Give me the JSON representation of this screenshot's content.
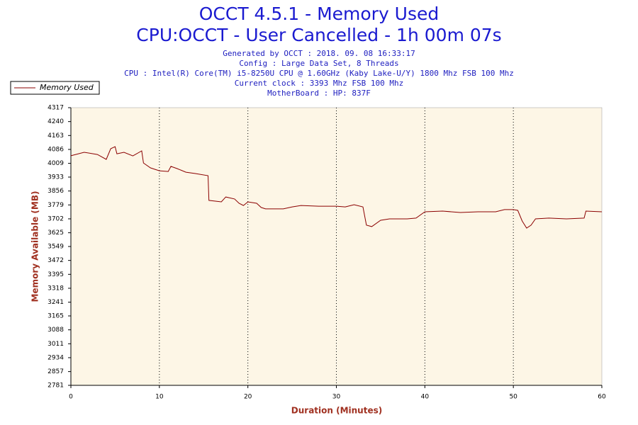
{
  "chart_data": {
    "type": "line",
    "title": "OCCT 4.5.1 - Memory Used",
    "subtitle": "CPU:OCCT - User Cancelled - 1h 00m 07s",
    "info": [
      "Generated by OCCT : 2018. 09. 08 16:33:17",
      "Config : Large Data Set, 8 Threads",
      "CPU : Intel(R) Core(TM) i5-8250U CPU @ 1.60GHz (Kaby Lake-U/Y) 1800 Mhz FSB 100 Mhz",
      "Current clock : 3393 Mhz FSB 100 Mhz",
      "MotherBoard : HP: 837F"
    ],
    "x_label": "Duration (Minutes)",
    "y_label": "Memory Available (MB)",
    "x": [
      0,
      1.5,
      3,
      4,
      4.5,
      5,
      5.2,
      6,
      7,
      8,
      8.2,
      9,
      10,
      11,
      11.3,
      12,
      13,
      14,
      15.5,
      15.6,
      17,
      17.5,
      18.5,
      19,
      19.5,
      20,
      21,
      21.5,
      22,
      24,
      25,
      26,
      28,
      30,
      31,
      32,
      33,
      33.4,
      34,
      35,
      36,
      38,
      39,
      40,
      42,
      44,
      46,
      48,
      49,
      50,
      50.5,
      51,
      51.5,
      52,
      52.5,
      54,
      56,
      58,
      58.2,
      60
    ],
    "series": [
      {
        "name": "Memory Used",
        "color": "#8b0000",
        "values": [
          4051,
          4070,
          4058,
          4031,
          4090,
          4101,
          4062,
          4070,
          4050,
          4078,
          4011,
          3984,
          3968,
          3964,
          3992,
          3980,
          3960,
          3953,
          3941,
          3804,
          3796,
          3823,
          3812,
          3788,
          3776,
          3796,
          3788,
          3765,
          3757,
          3757,
          3768,
          3776,
          3772,
          3772,
          3768,
          3780,
          3768,
          3667,
          3659,
          3694,
          3702,
          3702,
          3706,
          3741,
          3745,
          3737,
          3741,
          3741,
          3753,
          3753,
          3749,
          3690,
          3651,
          3667,
          3702,
          3706,
          3702,
          3706,
          3745,
          3741
        ]
      }
    ],
    "xlim": [
      0,
      60
    ],
    "xticks": [
      0,
      10,
      20,
      30,
      40,
      50,
      60
    ],
    "ylim": [
      2781,
      4317
    ],
    "yticks": [
      4317,
      4240,
      4163,
      4086,
      4009,
      3933,
      3856,
      3779,
      3702,
      3625,
      3549,
      3472,
      3395,
      3318,
      3241,
      3165,
      3088,
      3011,
      2934,
      2857,
      2781
    ],
    "grid": true,
    "legend": "top-left"
  }
}
